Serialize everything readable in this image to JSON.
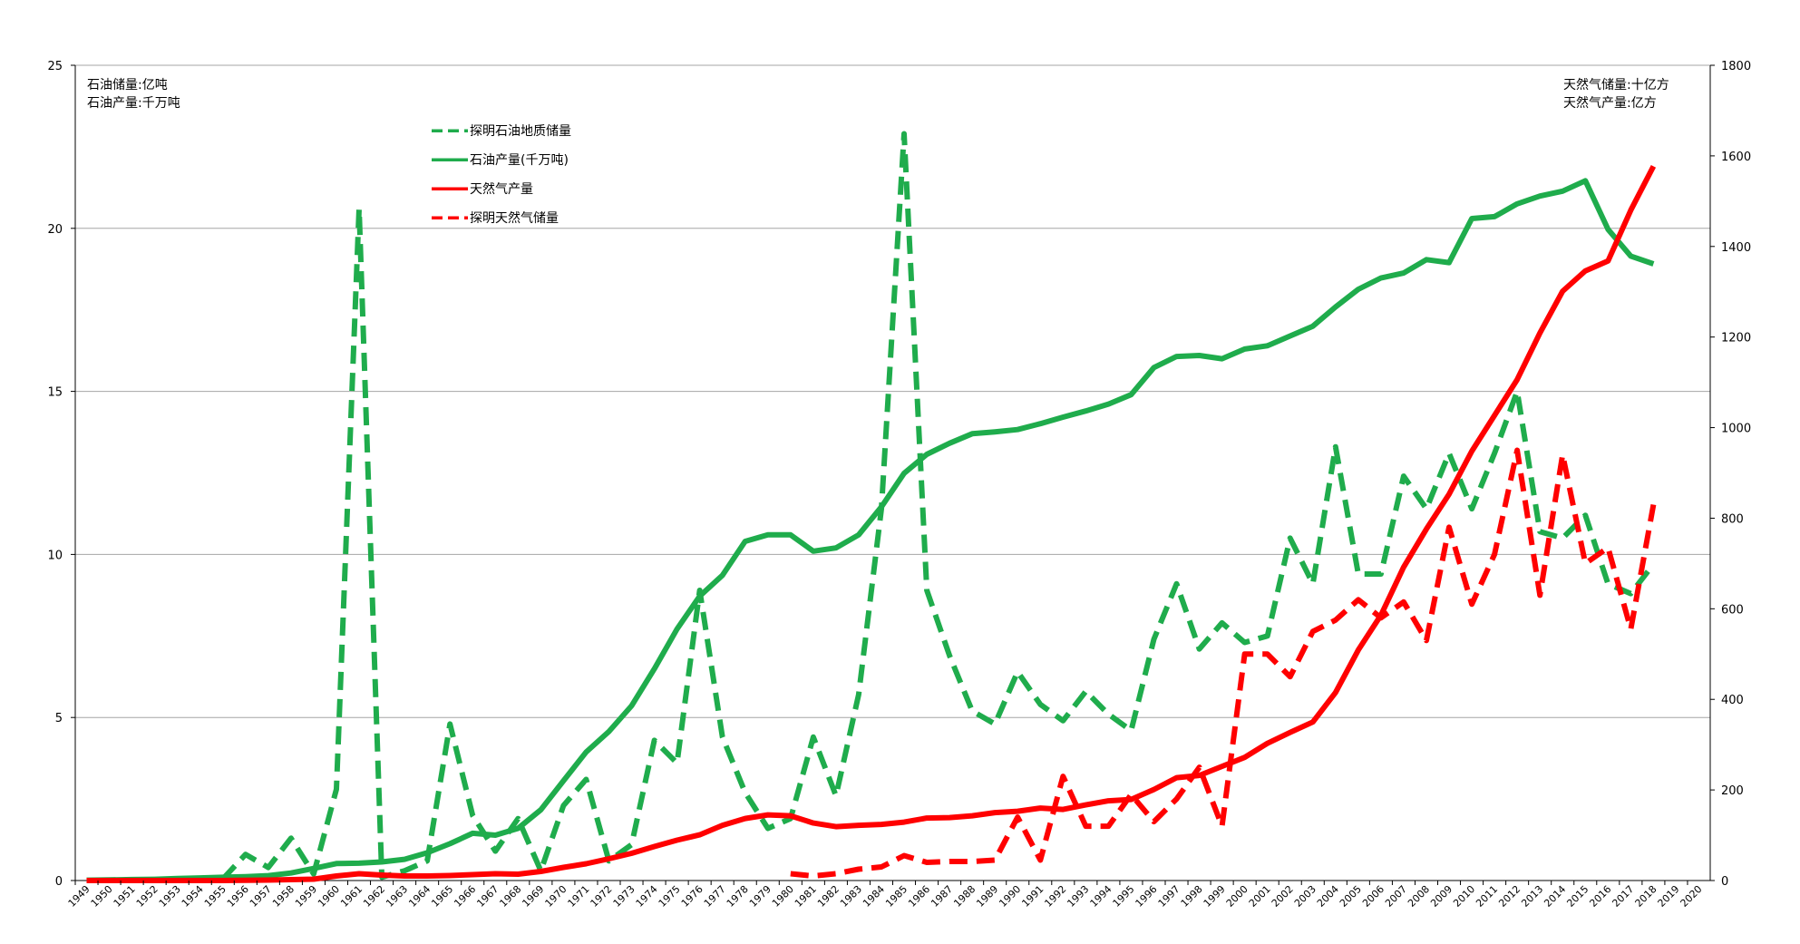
{
  "chart_data": {
    "type": "line",
    "left_axis_notes": [
      "石油储量:亿吨",
      "石油产量:千万吨"
    ],
    "right_axis_notes": [
      "天然气储量:十亿方",
      "天然气产量:亿方"
    ],
    "ylim_left": [
      0,
      25
    ],
    "yticks_left": [
      0,
      5,
      10,
      15,
      20,
      25
    ],
    "ylim_right": [
      0,
      1800
    ],
    "yticks_right": [
      0,
      200,
      400,
      600,
      800,
      1000,
      1200,
      1400,
      1600,
      1800
    ],
    "x_ticks": [
      1949,
      1950,
      1951,
      1952,
      1953,
      1954,
      1955,
      1956,
      1957,
      1958,
      1959,
      1960,
      1961,
      1962,
      1963,
      1964,
      1965,
      1966,
      1967,
      1968,
      1969,
      1970,
      1971,
      1972,
      1973,
      1974,
      1975,
      1976,
      1977,
      1978,
      1979,
      1980,
      1981,
      1982,
      1983,
      1984,
      1985,
      1986,
      1987,
      1988,
      1989,
      1990,
      1991,
      1992,
      1993,
      1994,
      1995,
      1996,
      1997,
      1998,
      1999,
      2000,
      2001,
      2002,
      2003,
      2004,
      2005,
      2006,
      2007,
      2008,
      2009,
      2010,
      2011,
      2012,
      2013,
      2014,
      2015,
      2016,
      2017,
      2018,
      2019,
      2020
    ],
    "grid": "horizontal",
    "legend_position": "top-left",
    "series": [
      {
        "name": "探明石油地质储量",
        "axis": "left",
        "color": "#1fac4c",
        "dash": "dashed",
        "x": [
          1949,
          1950,
          1951,
          1952,
          1953,
          1954,
          1955,
          1956,
          1957,
          1958,
          1959,
          1960,
          1961,
          1962,
          1963,
          1964,
          1965,
          1966,
          1967,
          1968,
          1969,
          1970,
          1971,
          1972,
          1973,
          1974,
          1975,
          1976,
          1977,
          1978,
          1979,
          1980,
          1981,
          1982,
          1983,
          1984,
          1985,
          1986,
          1987,
          1988,
          1989,
          1990,
          1991,
          1992,
          1993,
          1994,
          1995,
          1996,
          1997,
          1998,
          1999,
          2000,
          2001,
          2002,
          2003,
          2004,
          2005,
          2006,
          2007,
          2008,
          2009,
          2010,
          2011,
          2012,
          2013,
          2014,
          2015,
          2016,
          2017,
          2018
        ],
        "values": [
          0,
          0,
          0,
          0,
          0,
          0,
          0.05,
          0.8,
          0.4,
          1.3,
          0.2,
          2.8,
          20.6,
          0.1,
          0.3,
          0.6,
          4.8,
          2.0,
          0.9,
          1.9,
          0.3,
          2.3,
          3.1,
          0.6,
          1.1,
          4.3,
          3.6,
          8.9,
          4.4,
          2.7,
          1.6,
          1.9,
          4.4,
          2.6,
          5.7,
          11.4,
          22.9,
          8.9,
          6.9,
          5.2,
          4.8,
          6.4,
          5.4,
          4.9,
          5.8,
          5.1,
          4.6,
          7.4,
          9.1,
          7.1,
          7.9,
          7.3,
          7.5,
          10.5,
          9.1,
          13.3,
          9.4,
          9.4,
          12.4,
          11.4,
          13.1,
          11.4,
          13.1,
          15.0,
          10.7,
          10.5,
          11.2,
          9.1,
          8.8,
          9.7
        ]
      },
      {
        "name": "石油产量(千万吨)",
        "axis": "left",
        "color": "#1fac4c",
        "dash": "solid",
        "x": [
          1949,
          1950,
          1951,
          1952,
          1953,
          1954,
          1955,
          1956,
          1957,
          1958,
          1959,
          1960,
          1961,
          1962,
          1963,
          1964,
          1965,
          1966,
          1967,
          1968,
          1969,
          1970,
          1971,
          1972,
          1973,
          1974,
          1975,
          1976,
          1977,
          1978,
          1979,
          1980,
          1981,
          1982,
          1983,
          1984,
          1985,
          1986,
          1987,
          1988,
          1989,
          1990,
          1991,
          1992,
          1993,
          1994,
          1995,
          1996,
          1997,
          1998,
          1999,
          2000,
          2001,
          2002,
          2003,
          2004,
          2005,
          2006,
          2007,
          2008,
          2009,
          2010,
          2011,
          2012,
          2013,
          2014,
          2015,
          2016,
          2017,
          2018
        ],
        "values": [
          0.01,
          0.02,
          0.03,
          0.04,
          0.06,
          0.08,
          0.1,
          0.12,
          0.15,
          0.23,
          0.37,
          0.52,
          0.53,
          0.57,
          0.65,
          0.85,
          1.13,
          1.45,
          1.39,
          1.6,
          2.17,
          3.06,
          3.94,
          4.57,
          5.36,
          6.49,
          7.71,
          8.72,
          9.36,
          10.4,
          10.6,
          10.6,
          10.1,
          10.2,
          10.6,
          11.46,
          12.49,
          13.07,
          13.41,
          13.7,
          13.76,
          13.83,
          14.01,
          14.21,
          14.4,
          14.61,
          14.9,
          15.73,
          16.07,
          16.1,
          16.0,
          16.3,
          16.4,
          16.7,
          17.0,
          17.59,
          18.13,
          18.48,
          18.63,
          19.04,
          18.95,
          20.3,
          20.36,
          20.75,
          20.99,
          21.14,
          21.46,
          19.97,
          19.15,
          18.91
        ]
      },
      {
        "name": "天然气产量",
        "axis": "right",
        "color": "#ff0000",
        "dash": "solid",
        "x": [
          1949,
          1950,
          1951,
          1952,
          1953,
          1954,
          1955,
          1956,
          1957,
          1958,
          1959,
          1960,
          1961,
          1962,
          1963,
          1964,
          1965,
          1966,
          1967,
          1968,
          1969,
          1970,
          1971,
          1972,
          1973,
          1974,
          1975,
          1976,
          1977,
          1978,
          1979,
          1980,
          1981,
          1982,
          1983,
          1984,
          1985,
          1986,
          1987,
          1988,
          1989,
          1990,
          1991,
          1992,
          1993,
          1994,
          1995,
          1996,
          1997,
          1998,
          1999,
          2000,
          2001,
          2002,
          2003,
          2004,
          2005,
          2006,
          2007,
          2008,
          2009,
          2010,
          2011,
          2012,
          2013,
          2014,
          2015,
          2016,
          2017,
          2018
        ],
        "values": [
          0,
          0,
          0,
          0,
          0,
          0,
          0,
          0.5,
          1,
          2,
          3,
          10,
          15,
          12,
          10,
          10,
          11,
          13,
          15,
          14,
          20,
          29,
          37,
          48,
          60,
          75,
          89,
          101,
          122,
          137,
          145,
          143,
          127,
          119,
          122,
          124,
          129,
          138,
          139,
          143,
          150,
          153,
          160,
          157,
          167,
          176,
          179,
          201,
          227,
          232,
          252,
          272,
          303,
          327,
          350,
          415,
          509,
          586,
          692,
          776,
          853,
          948,
          1027,
          1106,
          1209,
          1301,
          1346,
          1368,
          1480,
          1577
        ]
      },
      {
        "name": "探明天然气储量",
        "axis": "right",
        "color": "#ff0000",
        "dash": "dashed",
        "x": [
          1980,
          1981,
          1982,
          1983,
          1984,
          1985,
          1986,
          1987,
          1988,
          1989,
          1990,
          1991,
          1992,
          1993,
          1994,
          1995,
          1996,
          1997,
          1998,
          1999,
          2000,
          2001,
          2002,
          2003,
          2004,
          2005,
          2006,
          2007,
          2008,
          2009,
          2010,
          2011,
          2012,
          2013,
          2014,
          2015,
          2016,
          2017,
          2018
        ],
        "values": [
          15,
          10,
          15,
          25,
          30,
          55,
          40,
          42,
          42,
          45,
          140,
          45,
          230,
          120,
          120,
          190,
          130,
          180,
          250,
          120,
          500,
          500,
          450,
          550,
          575,
          620,
          580,
          615,
          530,
          780,
          610,
          720,
          950,
          630,
          940,
          700,
          735,
          555,
          830
        ]
      }
    ]
  }
}
